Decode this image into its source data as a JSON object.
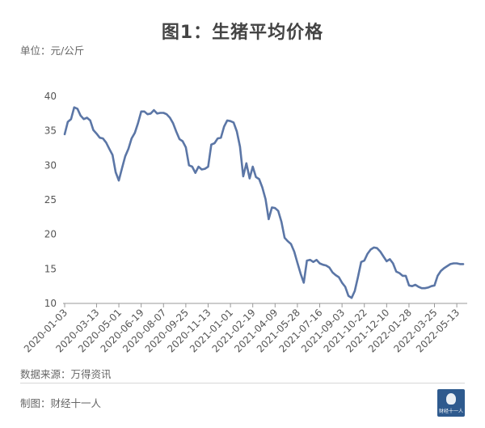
{
  "title": "图1：生猪平均价格",
  "unit": "单位：元/公斤",
  "source": "数据来源：万得资讯",
  "footer": "制图：财经十一人",
  "logo_text": "财经十一人",
  "colors": {
    "line": "#5b76a6",
    "axis": "#999999",
    "text": "#555555"
  },
  "chart_data": {
    "type": "line",
    "title": "图1：生猪平均价格",
    "ylabel": "单位：元/公斤",
    "xlabel": "",
    "ylim": [
      10,
      40
    ],
    "yticks": [
      10,
      15,
      20,
      25,
      30,
      35,
      40
    ],
    "grid": false,
    "xticks": [
      "2020-01-03",
      "2020-03-13",
      "2020-05-01",
      "2020-06-19",
      "2020-08-07",
      "2020-09-25",
      "2020-11-13",
      "2021-01-01",
      "2021-02-19",
      "2021-04-09",
      "2021-05-28",
      "2021-07-16",
      "2021-09-03",
      "2021-10-22",
      "2021-12-10",
      "2022-01-28",
      "2022-03-25",
      "2022-05-13"
    ],
    "series": [
      {
        "x": [
          "2020-01-03",
          "2020-01-10",
          "2020-01-17",
          "2020-01-24",
          "2020-01-31",
          "2020-02-07",
          "2020-02-14",
          "2020-02-21",
          "2020-02-28",
          "2020-03-06",
          "2020-03-13",
          "2020-03-20",
          "2020-03-27",
          "2020-04-03",
          "2020-04-10",
          "2020-04-17",
          "2020-04-24",
          "2020-05-01",
          "2020-05-08",
          "2020-05-15",
          "2020-05-22",
          "2020-05-29",
          "2020-06-05",
          "2020-06-12",
          "2020-06-19",
          "2020-06-26",
          "2020-07-03",
          "2020-07-10",
          "2020-07-17",
          "2020-07-24",
          "2020-07-31",
          "2020-08-07",
          "2020-08-14",
          "2020-08-21",
          "2020-08-28",
          "2020-09-04",
          "2020-09-11",
          "2020-09-18",
          "2020-09-25",
          "2020-10-02",
          "2020-10-09",
          "2020-10-16",
          "2020-10-23",
          "2020-10-30",
          "2020-11-06",
          "2020-11-13",
          "2020-11-20",
          "2020-11-27",
          "2020-12-04",
          "2020-12-11",
          "2020-12-18",
          "2020-12-25",
          "2021-01-01",
          "2021-01-08",
          "2021-01-15",
          "2021-01-22",
          "2021-01-29",
          "2021-02-05",
          "2021-02-12",
          "2021-02-19",
          "2021-02-26",
          "2021-03-05",
          "2021-03-12",
          "2021-03-19",
          "2021-03-26",
          "2021-04-02",
          "2021-04-09",
          "2021-04-16",
          "2021-04-23",
          "2021-04-30",
          "2021-05-07",
          "2021-05-14",
          "2021-05-21",
          "2021-05-28",
          "2021-06-04",
          "2021-06-11",
          "2021-06-18",
          "2021-06-25",
          "2021-07-02",
          "2021-07-09",
          "2021-07-16",
          "2021-07-23",
          "2021-07-30",
          "2021-08-06",
          "2021-08-13",
          "2021-08-20",
          "2021-08-27",
          "2021-09-03",
          "2021-09-10",
          "2021-09-17",
          "2021-09-24",
          "2021-10-01",
          "2021-10-08",
          "2021-10-15",
          "2021-10-22",
          "2021-10-29",
          "2021-11-05",
          "2021-11-12",
          "2021-11-19",
          "2021-11-26",
          "2021-12-03",
          "2021-12-10",
          "2021-12-17",
          "2021-12-24",
          "2021-12-31",
          "2022-01-07",
          "2022-01-14",
          "2022-01-21",
          "2022-01-28",
          "2022-02-04",
          "2022-02-11",
          "2022-02-18",
          "2022-02-25",
          "2022-03-04",
          "2022-03-11",
          "2022-03-18",
          "2022-03-25",
          "2022-04-01",
          "2022-04-08",
          "2022-04-15",
          "2022-04-22",
          "2022-04-29",
          "2022-05-06",
          "2022-05-13",
          "2022-05-20",
          "2022-05-27"
        ],
        "values": [
          34.5,
          36.3,
          36.7,
          38.4,
          38.2,
          37.2,
          36.7,
          36.9,
          36.5,
          35.1,
          34.6,
          34.0,
          33.9,
          33.3,
          32.4,
          31.5,
          29.0,
          27.8,
          29.6,
          31.3,
          32.4,
          33.9,
          34.7,
          36.1,
          37.8,
          37.8,
          37.4,
          37.5,
          38.0,
          37.5,
          37.6,
          37.6,
          37.4,
          36.9,
          36.1,
          34.9,
          33.8,
          33.5,
          32.6,
          30.0,
          29.8,
          28.9,
          29.8,
          29.4,
          29.5,
          29.8,
          33.0,
          33.2,
          33.9,
          34.0,
          35.6,
          36.5,
          36.4,
          36.2,
          34.9,
          32.7,
          28.4,
          30.3,
          28.1,
          29.8,
          28.3,
          28.0,
          26.8,
          25.1,
          22.2,
          23.9,
          23.8,
          23.4,
          21.8,
          19.5,
          19.0,
          18.6,
          17.5,
          15.9,
          14.3,
          13.0,
          16.2,
          16.3,
          16.0,
          16.3,
          15.8,
          15.6,
          15.5,
          15.2,
          14.5,
          14.1,
          13.8,
          13.0,
          12.4,
          11.1,
          10.8,
          11.8,
          13.8,
          16.0,
          16.2,
          17.2,
          17.8,
          18.1,
          18.0,
          17.5,
          16.8,
          16.1,
          16.4,
          15.8,
          14.6,
          14.4,
          14.0,
          14.0,
          12.6,
          12.5,
          12.7,
          12.4,
          12.2,
          12.2,
          12.3,
          12.5,
          12.6,
          14.0,
          14.7,
          15.1,
          15.4,
          15.7,
          15.8,
          15.8,
          15.7,
          15.7
        ]
      }
    ]
  }
}
